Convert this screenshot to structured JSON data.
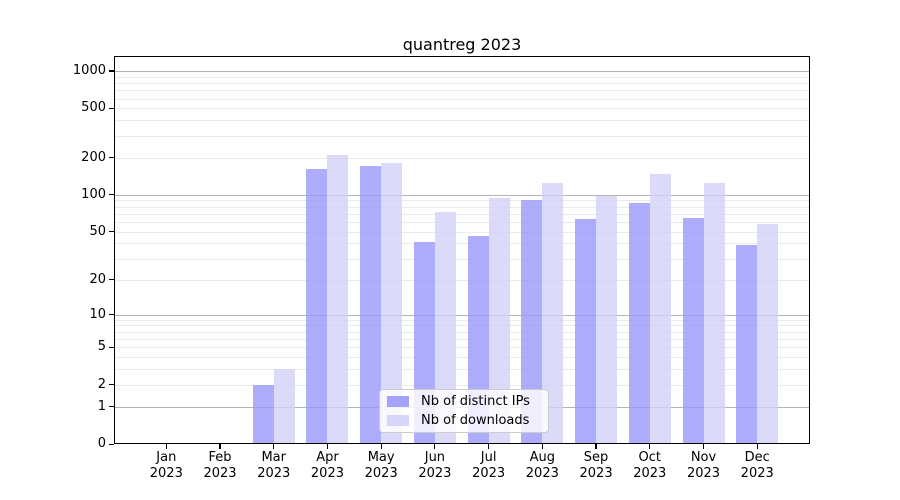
{
  "chart_data": {
    "type": "bar",
    "title": "quantreg 2023",
    "year": "2023",
    "categories": [
      "Jan",
      "Feb",
      "Mar",
      "Apr",
      "May",
      "Jun",
      "Jul",
      "Aug",
      "Sep",
      "Oct",
      "Nov",
      "Dec"
    ],
    "series": [
      {
        "name": "Nb of distinct IPs",
        "color": "#9999fa",
        "values": [
          0,
          0,
          2,
          161,
          172,
          41,
          46,
          91,
          64,
          85,
          65,
          39
        ]
      },
      {
        "name": "Nb of downloads",
        "color": "#d2d2f8",
        "values": [
          0,
          0,
          3,
          211,
          181,
          73,
          94,
          124,
          98,
          147,
          124,
          58
        ]
      }
    ],
    "yticks": [
      0,
      1,
      2,
      5,
      10,
      20,
      50,
      100,
      200,
      500,
      1000
    ],
    "xlabel": "",
    "ylabel": "",
    "yscale": "log10(1+x)",
    "ylim": [
      0,
      1100
    ],
    "grid": "horizontal log gridlines, minor and major",
    "legend_position": "lower center inside plot"
  },
  "colors": {
    "minor_grid": "#ebebeb",
    "major_grid": "#b3b3b3",
    "spine": "#000000",
    "legend_border": "#cccccc"
  }
}
